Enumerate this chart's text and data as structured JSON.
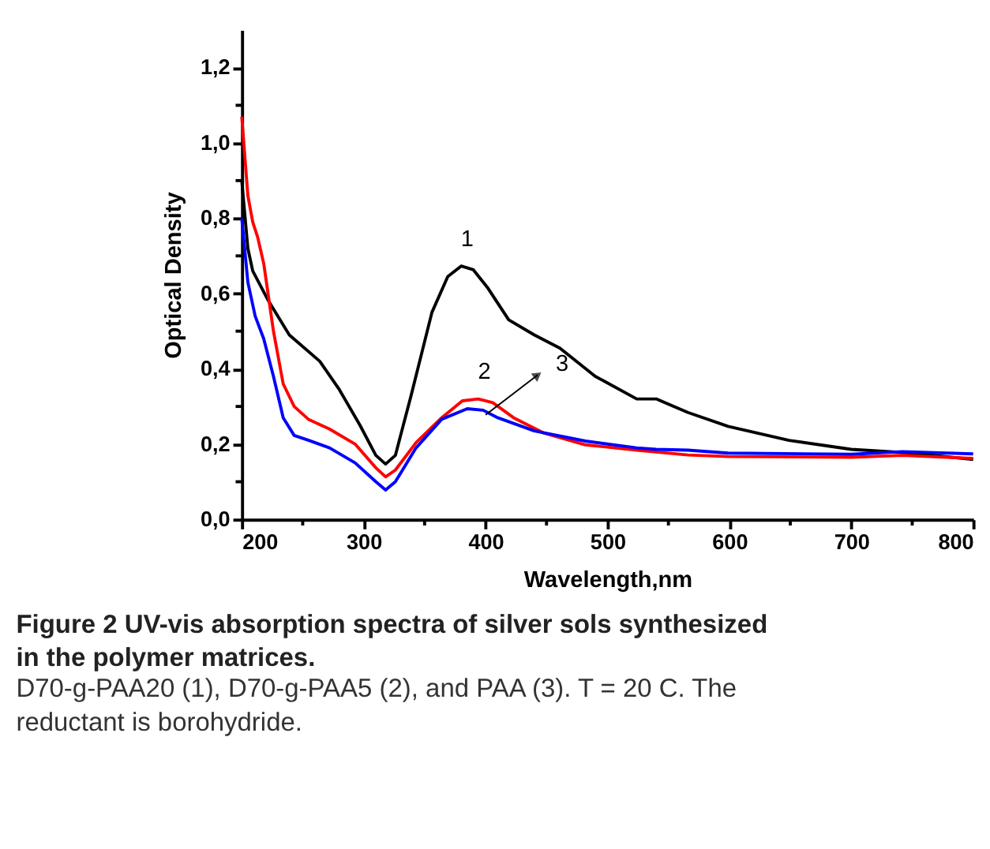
{
  "chart_data": {
    "type": "line",
    "xlabel": "Wavelength,nm",
    "ylabel": "Optical Density",
    "xlim": [
      200,
      800
    ],
    "ylim": [
      0,
      1.3
    ],
    "xticks": [
      200,
      {
        "value": 250,
        "label": null
      },
      300,
      {
        "value": 350,
        "label": null
      },
      400,
      {
        "value": 450,
        "label": null
      },
      500,
      {
        "value": 550,
        "label": null
      },
      600,
      {
        "value": 650,
        "label": null
      },
      700,
      {
        "value": 750,
        "label": null
      },
      800
    ],
    "yticks": [
      {
        "value": 0,
        "label": "0,0"
      },
      {
        "value": 0.1,
        "label": null
      },
      {
        "value": 0.2,
        "label": "0,2"
      },
      {
        "value": 0.3,
        "label": null
      },
      {
        "value": 0.4,
        "label": "0,4"
      },
      {
        "value": 0.5,
        "label": null
      },
      {
        "value": 0.6,
        "label": "0,6"
      },
      {
        "value": 0.7,
        "label": null
      },
      {
        "value": 0.8,
        "label": "0,8"
      },
      {
        "value": 0.9,
        "label": null
      },
      {
        "value": 1.0,
        "label": "1,0"
      },
      {
        "value": 1.1,
        "label": null
      },
      {
        "value": 1.2,
        "label": "1,2"
      }
    ],
    "grid": false,
    "legend": false,
    "marker": "none",
    "line_style": "solid",
    "series": [
      {
        "color": "#000000",
        "x": [
          200,
          205,
          209,
          222,
          239,
          264,
          280,
          297,
          310,
          318,
          326,
          339,
          356,
          369,
          380,
          390,
          402,
          419,
          440,
          461,
          490,
          524,
          540,
          566,
          599,
          649,
          700,
          750,
          800
        ],
        "values": [
          0.9,
          0.72,
          0.66,
          0.58,
          0.49,
          0.42,
          0.345,
          0.25,
          0.17,
          0.147,
          0.17,
          0.33,
          0.55,
          0.645,
          0.673,
          0.663,
          0.614,
          0.53,
          0.49,
          0.455,
          0.38,
          0.32,
          0.32,
          0.284,
          0.247,
          0.21,
          0.186,
          0.176,
          0.159
        ]
      },
      {
        "color": "#ff0000",
        "x": [
          200,
          205,
          209,
          213,
          218,
          226,
          234,
          243,
          255,
          272,
          293,
          310,
          318,
          326,
          343,
          364,
          381,
          394,
          406,
          423,
          448,
          482,
          524,
          540,
          566,
          599,
          700,
          742,
          800
        ],
        "values": [
          1.07,
          0.86,
          0.79,
          0.75,
          0.68,
          0.5,
          0.36,
          0.3,
          0.265,
          0.24,
          0.2,
          0.137,
          0.113,
          0.131,
          0.204,
          0.27,
          0.315,
          0.32,
          0.31,
          0.27,
          0.229,
          0.198,
          0.184,
          0.179,
          0.171,
          0.167,
          0.165,
          0.17,
          0.162
        ]
      },
      {
        "color": "#0000ff",
        "x": [
          200,
          205,
          211,
          218,
          226,
          234,
          243,
          255,
          272,
          293,
          310,
          318,
          326,
          343,
          364,
          385,
          398,
          410,
          440,
          482,
          524,
          540,
          566,
          599,
          700,
          742,
          800
        ],
        "values": [
          0.8,
          0.63,
          0.54,
          0.48,
          0.38,
          0.27,
          0.223,
          0.21,
          0.19,
          0.15,
          0.1,
          0.078,
          0.1,
          0.19,
          0.266,
          0.294,
          0.29,
          0.27,
          0.235,
          0.208,
          0.19,
          0.186,
          0.184,
          0.176,
          0.173,
          0.18,
          0.174
        ]
      }
    ],
    "annotations": [
      "1",
      "2",
      "3",
      "Figure 2 UV-vis absorption spectra of silver sols synthesized in the polymer matrices.",
      "D70-g-PAA20 (1), D70-g-PAA5 (2), and PAA (3). T = 20 C. The reductant is borohydride."
    ]
  }
}
